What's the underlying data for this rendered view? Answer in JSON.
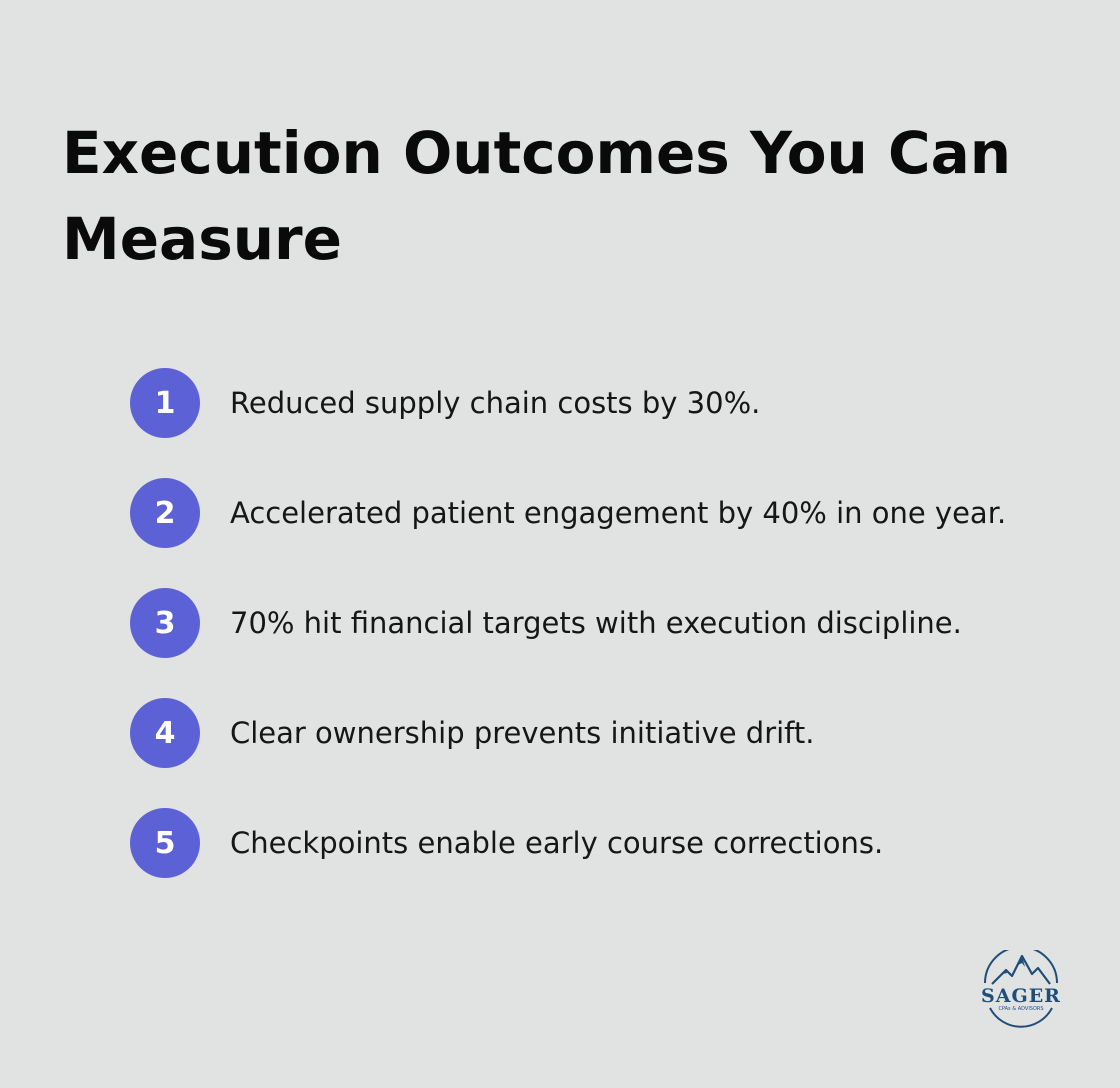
{
  "title": "Execution Outcomes You Can Measure",
  "items": [
    {
      "number": "1",
      "text": "Reduced supply chain costs by 30%."
    },
    {
      "number": "2",
      "text": "Accelerated patient engagement by 40% in one year."
    },
    {
      "number": "3",
      "text": "70% hit financial targets with execution discipline."
    },
    {
      "number": "4",
      "text": "Clear ownership prevents initiative drift."
    },
    {
      "number": "5",
      "text": "Checkpoints enable early course corrections."
    }
  ],
  "logo": {
    "name": "SAGER",
    "tagline": "CPAs & ADVISORS",
    "icon": "mountain-icon"
  },
  "colors": {
    "background": "#e1e2e2",
    "badge": "#5c62d6",
    "title": "#0a0a0a",
    "logo": "#1f4e79"
  }
}
